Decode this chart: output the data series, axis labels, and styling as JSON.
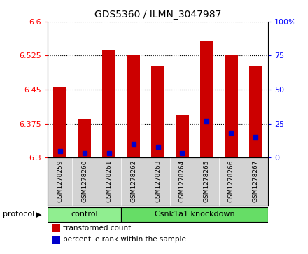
{
  "title": "GDS5360 / ILMN_3047987",
  "samples": [
    "GSM1278259",
    "GSM1278260",
    "GSM1278261",
    "GSM1278262",
    "GSM1278263",
    "GSM1278264",
    "GSM1278265",
    "GSM1278266",
    "GSM1278267"
  ],
  "transformed_count": [
    6.455,
    6.385,
    6.537,
    6.525,
    6.503,
    6.395,
    6.558,
    6.525,
    6.503
  ],
  "percentile_rank": [
    5,
    3,
    3,
    10,
    8,
    3,
    27,
    18,
    15
  ],
  "ymin": 6.3,
  "ymax": 6.6,
  "yticks": [
    6.3,
    6.375,
    6.45,
    6.525,
    6.6
  ],
  "right_yticks": [
    0,
    25,
    50,
    75,
    100
  ],
  "bar_color": "#cc0000",
  "blue_color": "#0000cc",
  "groups": [
    {
      "label": "control",
      "indices": [
        0,
        1,
        2
      ],
      "color": "#90ee90"
    },
    {
      "label": "Csnk1a1 knockdown",
      "indices": [
        3,
        4,
        5,
        6,
        7,
        8
      ],
      "color": "#66dd66"
    }
  ],
  "protocol_label": "protocol",
  "legend_items": [
    {
      "label": "transformed count",
      "color": "#cc0000"
    },
    {
      "label": "percentile rank within the sample",
      "color": "#0000cc"
    }
  ],
  "bar_width": 0.55,
  "background_color": "#ffffff",
  "tick_area_color": "#d3d3d3",
  "title_fontsize": 10
}
